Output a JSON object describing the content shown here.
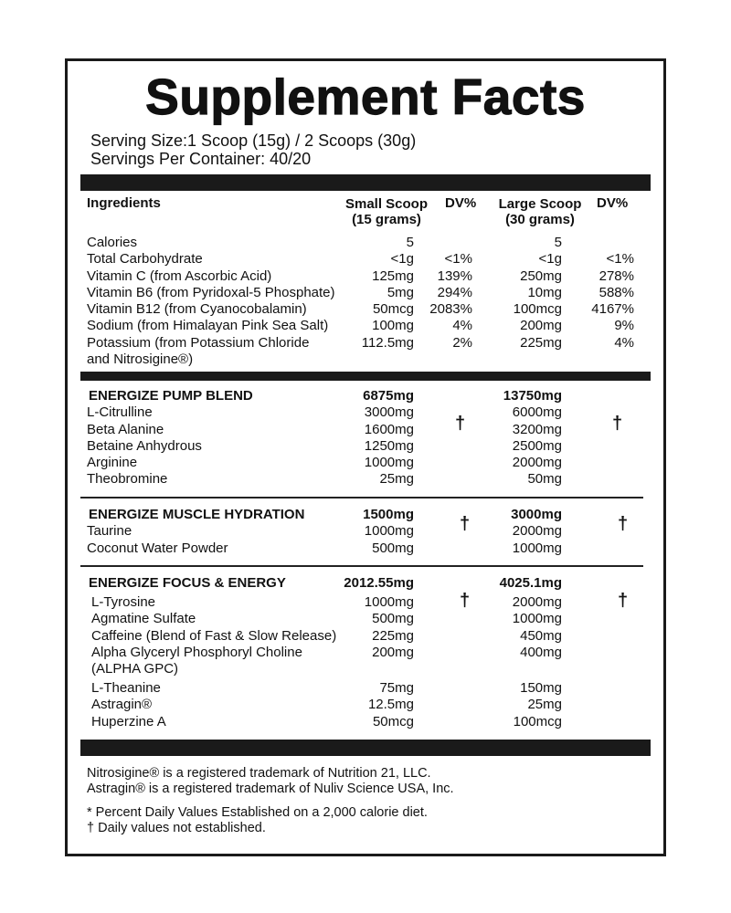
{
  "title": "Supplement Facts",
  "serving_size": "Serving Size:1 Scoop (15g) / 2 Scoops (30g)",
  "servings_per_container": "Servings Per Container: 40/20",
  "headers": {
    "ingredients": "Ingredients",
    "small_scoop": "Small Scoop",
    "small_scoop_sub": "(15 grams)",
    "dv1": "DV%",
    "large_scoop": "Large Scoop",
    "large_scoop_sub": "(30 grams)",
    "dv2": "DV%"
  },
  "nutrients": [
    {
      "name": "Calories",
      "small": "5",
      "dv1": "",
      "large": "5",
      "dv2": ""
    },
    {
      "name": "Total Carbohydrate",
      "small": "<1g",
      "dv1": "<1%",
      "large": "<1g",
      "dv2": "<1%"
    },
    {
      "name": "Vitamin C (from Ascorbic Acid)",
      "small": "125mg",
      "dv1": "139%",
      "large": "250mg",
      "dv2": "278%"
    },
    {
      "name": "Vitamin B6 (from Pyridoxal-5 Phosphate)",
      "small": "5mg",
      "dv1": "294%",
      "large": "10mg",
      "dv2": "588%"
    },
    {
      "name": "Vitamin B12 (from Cyanocobalamin)",
      "small": "50mcg",
      "dv1": "2083%",
      "large": "100mcg",
      "dv2": "4167%"
    },
    {
      "name": "Sodium (from Himalayan Pink Sea Salt)",
      "small": "100mg",
      "dv1": "4%",
      "large": "200mg",
      "dv2": "9%"
    },
    {
      "name": "Potassium (from Potassium Chloride",
      "small": "112.5mg",
      "dv1": "2%",
      "large": "225mg",
      "dv2": "4%"
    },
    {
      "name": "and Nitrosigine®)",
      "small": "",
      "dv1": "",
      "large": "",
      "dv2": ""
    }
  ],
  "blends": [
    {
      "name": "ENERGIZE PUMP BLEND",
      "small": "6875mg",
      "large": "13750mg",
      "dagger": "†",
      "items": [
        {
          "name": "L-Citrulline",
          "small": "3000mg",
          "large": "6000mg"
        },
        {
          "name": "Beta Alanine",
          "small": "1600mg",
          "large": "3200mg"
        },
        {
          "name": "Betaine Anhydrous",
          "small": "1250mg",
          "large": "2500mg"
        },
        {
          "name": "Arginine",
          "small": "1000mg",
          "large": "2000mg"
        },
        {
          "name": "Theobromine",
          "small": "25mg",
          "large": "50mg"
        }
      ]
    },
    {
      "name": "ENERGIZE MUSCLE HYDRATION",
      "small": "1500mg",
      "large": "3000mg",
      "dagger": "†",
      "items": [
        {
          "name": "Taurine",
          "small": "1000mg",
          "large": "2000mg"
        },
        {
          "name": "Coconut Water Powder",
          "small": "500mg",
          "large": "1000mg"
        }
      ]
    },
    {
      "name": "ENERGIZE FOCUS & ENERGY",
      "small": "2012.55mg",
      "large": "4025.1mg",
      "dagger": "†",
      "items": [
        {
          "name": "L-Tyrosine",
          "small": "1000mg",
          "large": "2000mg"
        },
        {
          "name": "Agmatine Sulfate",
          "small": "500mg",
          "large": "1000mg"
        },
        {
          "name": "Caffeine (Blend of Fast & Slow Release)",
          "small": "225mg",
          "large": "450mg"
        },
        {
          "name": "Alpha Glyceryl Phosphoryl Choline",
          "small": "200mg",
          "large": "400mg"
        },
        {
          "name": "(ALPHA GPC)",
          "small": "",
          "large": ""
        },
        {
          "name": "L-Theanine",
          "small": "75mg",
          "large": "150mg"
        },
        {
          "name": "Astragin®",
          "small": "12.5mg",
          "large": "25mg"
        },
        {
          "name": "Huperzine A",
          "small": "50mcg",
          "large": "100mcg"
        }
      ]
    }
  ],
  "footer": {
    "tm1": "Nitrosigine® is a registered trademark of Nutrition 21, LLC.",
    "tm2": "Astragin® is a registered trademark of Nuliv Science USA, Inc.",
    "note1": "* Percent Daily Values Established on a 2,000 calorie diet.",
    "note2": "† Daily values not established."
  }
}
